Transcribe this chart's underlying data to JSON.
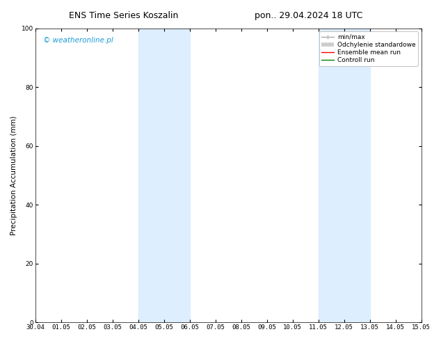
{
  "title_left": "ENS Time Series Koszalin",
  "title_right": "pon.. 29.04.2024 18 UTC",
  "ylabel": "Precipitation Accumulation (mm)",
  "ylim": [
    0,
    100
  ],
  "yticks": [
    0,
    20,
    40,
    60,
    80,
    100
  ],
  "background_color": "#ffffff",
  "plot_bg_color": "#ffffff",
  "watermark": "© weatheronline.pl",
  "watermark_color": "#1a9cd8",
  "x_tick_labels": [
    "30.04",
    "01.05",
    "02.05",
    "03.05",
    "04.05",
    "05.05",
    "06.05",
    "07.05",
    "08.05",
    "09.05",
    "10.05",
    "11.05",
    "12.05",
    "13.05",
    "14.05",
    "15.05"
  ],
  "shaded_regions": [
    {
      "xmin": 4,
      "xmax": 6,
      "color": "#ddeeff"
    },
    {
      "xmin": 11,
      "xmax": 13,
      "color": "#ddeeff"
    }
  ],
  "legend_entries": [
    {
      "label": "min/max",
      "color": "#aaaaaa",
      "lw": 1.0,
      "style": "line_with_caps"
    },
    {
      "label": "Odchylenie standardowe",
      "color": "#cccccc",
      "lw": 4.0,
      "style": "thick"
    },
    {
      "label": "Ensemble mean run",
      "color": "#ff0000",
      "lw": 1.0,
      "style": "line"
    },
    {
      "label": "Controll run",
      "color": "#008000",
      "lw": 1.0,
      "style": "line"
    }
  ],
  "font_size_title": 9,
  "font_size_ticks": 6.5,
  "font_size_legend": 6.5,
  "font_size_ylabel": 7.5,
  "font_size_watermark": 7.5
}
